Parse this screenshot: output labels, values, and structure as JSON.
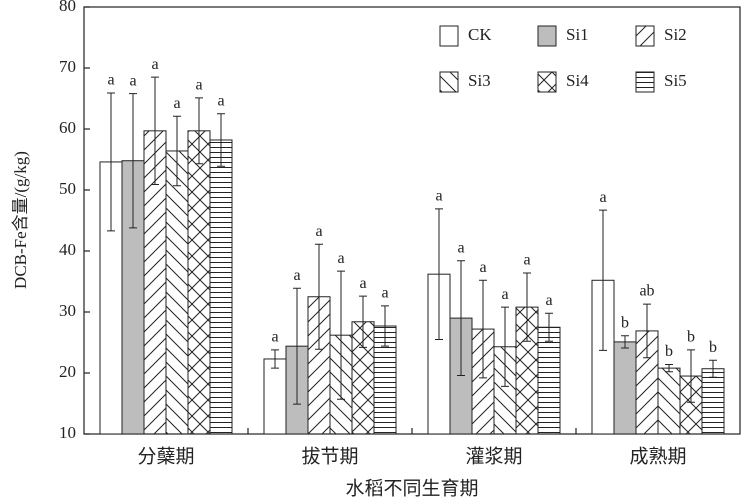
{
  "chart_data": {
    "type": "bar",
    "y_label": "DCB-Fe含量/(g/kg)",
    "x_label": "水稻不同生育期",
    "categories": [
      "分蘖期",
      "拔节期",
      "灌浆期",
      "成熟期"
    ],
    "ylim": [
      10,
      80
    ],
    "yticks": [
      10,
      20,
      30,
      40,
      50,
      60,
      70,
      80
    ],
    "legend": "upper-right",
    "series": [
      {
        "name": "CK",
        "color": "#ffffff",
        "pattern": "none",
        "values": [
          54.6,
          22.3,
          36.2,
          35.2
        ],
        "errors": [
          11.3,
          1.5,
          10.7,
          11.5
        ],
        "letters": [
          "a",
          "a",
          "a",
          "a"
        ]
      },
      {
        "name": "Si1",
        "color": "#bdbdbd",
        "pattern": "none",
        "values": [
          54.8,
          24.4,
          29.0,
          25.1
        ],
        "errors": [
          11.0,
          9.5,
          9.4,
          1.0
        ],
        "letters": [
          "a",
          "a",
          "a",
          "b"
        ]
      },
      {
        "name": "Si2",
        "color": "#ffffff",
        "pattern": "diag-up",
        "values": [
          59.7,
          32.5,
          27.2,
          26.9
        ],
        "errors": [
          8.8,
          8.6,
          8.0,
          4.4
        ],
        "letters": [
          "a",
          "a",
          "a",
          "ab"
        ]
      },
      {
        "name": "Si3",
        "color": "#ffffff",
        "pattern": "diag-down",
        "values": [
          56.4,
          26.2,
          24.3,
          20.8
        ],
        "errors": [
          5.7,
          10.5,
          6.5,
          0.6
        ],
        "letters": [
          "a",
          "a",
          "a",
          "b"
        ]
      },
      {
        "name": "Si4",
        "color": "#ffffff",
        "pattern": "cross",
        "values": [
          59.7,
          28.4,
          30.8,
          19.5
        ],
        "errors": [
          5.4,
          4.2,
          5.6,
          4.3
        ],
        "letters": [
          "a",
          "a",
          "a",
          "b"
        ]
      },
      {
        "name": "Si5",
        "color": "#ffffff",
        "pattern": "horizontal",
        "values": [
          58.2,
          27.7,
          27.5,
          20.7
        ],
        "errors": [
          4.3,
          3.3,
          2.3,
          1.4
        ],
        "letters": [
          "a",
          "a",
          "a",
          "b"
        ]
      }
    ]
  }
}
